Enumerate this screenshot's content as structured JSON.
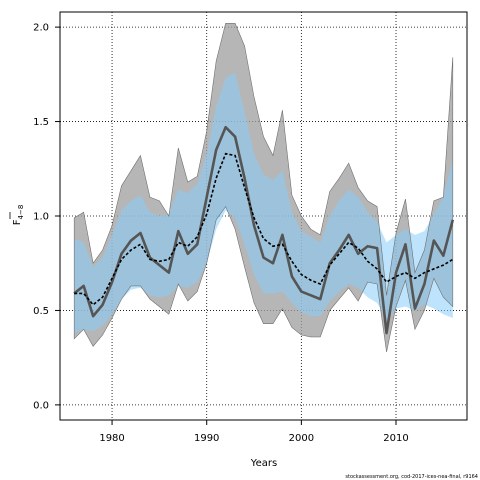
{
  "chart_data": {
    "type": "line",
    "xlabel": "Years",
    "ylabel": "F",
    "ylabel_sub": "4−8",
    "xlim": [
      1974.5,
      2017.5
    ],
    "ylim": [
      -0.08,
      2.08
    ],
    "x_ticks": [
      1980,
      1990,
      2000,
      2010
    ],
    "y_ticks": [
      0.0,
      0.5,
      1.0,
      1.5,
      2.0
    ],
    "y_tick_labels": [
      "0.0",
      "0.5",
      "1.0",
      "1.5",
      "2.0"
    ],
    "grid": "dotted",
    "credit": "stockassessment.org, cod-2017-ices-nea-final, r9164",
    "years": [
      1976,
      1977,
      1978,
      1979,
      1980,
      1981,
      1982,
      1983,
      1984,
      1985,
      1986,
      1987,
      1988,
      1989,
      1990,
      1991,
      1992,
      1993,
      1994,
      1995,
      1996,
      1997,
      1998,
      1999,
      2000,
      2001,
      2002,
      2003,
      2004,
      2005,
      2006,
      2007,
      2008,
      2009,
      2010,
      2011,
      2012,
      2013,
      2014,
      2015,
      2016
    ],
    "series": [
      {
        "role": "model_a_estimate",
        "color": "#555555",
        "values": [
          0.59,
          0.63,
          0.47,
          0.53,
          0.65,
          0.8,
          0.87,
          0.91,
          0.78,
          0.74,
          0.7,
          0.92,
          0.8,
          0.85,
          1.1,
          1.35,
          1.47,
          1.42,
          1.2,
          0.95,
          0.78,
          0.75,
          0.9,
          0.68,
          0.6,
          0.58,
          0.56,
          0.75,
          0.82,
          0.9,
          0.8,
          0.84,
          0.83,
          0.38,
          0.7,
          0.85,
          0.51,
          0.64,
          0.87,
          0.79,
          0.98
        ],
        "upper": [
          0.99,
          1.02,
          0.75,
          0.82,
          0.95,
          1.16,
          1.24,
          1.32,
          1.1,
          1.08,
          1.0,
          1.36,
          1.18,
          1.21,
          1.45,
          1.82,
          2.02,
          2.02,
          1.9,
          1.63,
          1.42,
          1.32,
          1.56,
          1.11,
          1.0,
          0.93,
          0.9,
          1.13,
          1.2,
          1.28,
          1.15,
          1.08,
          1.05,
          0.58,
          0.91,
          1.09,
          0.7,
          0.82,
          1.08,
          1.1,
          1.84
        ],
        "lower": [
          0.35,
          0.4,
          0.31,
          0.37,
          0.46,
          0.56,
          0.63,
          0.63,
          0.56,
          0.52,
          0.48,
          0.64,
          0.55,
          0.6,
          0.75,
          0.98,
          1.05,
          0.93,
          0.73,
          0.54,
          0.43,
          0.43,
          0.51,
          0.41,
          0.37,
          0.36,
          0.36,
          0.5,
          0.56,
          0.62,
          0.55,
          0.65,
          0.64,
          0.28,
          0.52,
          0.66,
          0.4,
          0.5,
          0.67,
          0.57,
          0.52
        ]
      },
      {
        "role": "model_b_estimate",
        "color": "#000000",
        "values": [
          0.59,
          0.59,
          0.53,
          0.57,
          0.67,
          0.77,
          0.82,
          0.85,
          0.77,
          0.76,
          0.77,
          0.86,
          0.84,
          0.89,
          1.01,
          1.2,
          1.33,
          1.32,
          1.15,
          0.99,
          0.88,
          0.84,
          0.85,
          0.76,
          0.69,
          0.66,
          0.64,
          0.74,
          0.8,
          0.86,
          0.83,
          0.76,
          0.72,
          0.65,
          0.68,
          0.7,
          0.67,
          0.7,
          0.72,
          0.74,
          0.77
        ],
        "upper": [
          0.88,
          0.86,
          0.73,
          0.78,
          0.9,
          1.03,
          1.08,
          1.11,
          1.02,
          1.0,
          1.01,
          1.14,
          1.12,
          1.17,
          1.33,
          1.58,
          1.73,
          1.76,
          1.55,
          1.33,
          1.22,
          1.19,
          1.24,
          1.02,
          0.92,
          0.89,
          0.86,
          1.0,
          1.08,
          1.14,
          1.1,
          1.02,
          0.97,
          0.86,
          0.9,
          0.93,
          0.9,
          0.92,
          1.01,
          1.1,
          1.3
        ],
        "lower": [
          0.38,
          0.4,
          0.39,
          0.42,
          0.48,
          0.56,
          0.61,
          0.62,
          0.58,
          0.57,
          0.58,
          0.63,
          0.62,
          0.65,
          0.75,
          0.93,
          1.03,
          0.99,
          0.85,
          0.69,
          0.59,
          0.59,
          0.6,
          0.54,
          0.49,
          0.47,
          0.47,
          0.55,
          0.6,
          0.64,
          0.62,
          0.57,
          0.54,
          0.45,
          0.51,
          0.52,
          0.5,
          0.53,
          0.51,
          0.48,
          0.46
        ]
      }
    ],
    "colors": {
      "band_a": "#9e9e9e",
      "band_b": "#87cefa",
      "band_overlap": "#8fb6cc"
    }
  }
}
